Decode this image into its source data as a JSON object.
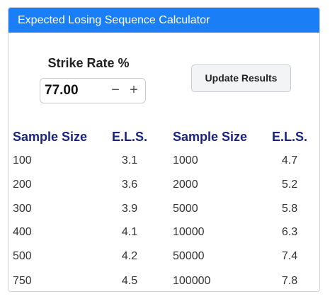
{
  "header": {
    "title": "Expected Losing Sequence Calculator"
  },
  "strike_rate": {
    "label": "Strike Rate %",
    "value": "77.00",
    "minus_symbol": "−",
    "plus_symbol": "+"
  },
  "update_button": {
    "label": "Update Results"
  },
  "table": {
    "headers": [
      "Sample Size",
      "E.L.S.",
      "Sample Size",
      "E.L.S."
    ],
    "rows": [
      [
        "100",
        "3.1",
        "1000",
        "4.7"
      ],
      [
        "200",
        "3.6",
        "2000",
        "5.2"
      ],
      [
        "300",
        "3.9",
        "5000",
        "5.8"
      ],
      [
        "400",
        "4.1",
        "10000",
        "6.3"
      ],
      [
        "500",
        "4.2",
        "50000",
        "7.4"
      ],
      [
        "750",
        "4.5",
        "100000",
        "7.8"
      ]
    ]
  }
}
